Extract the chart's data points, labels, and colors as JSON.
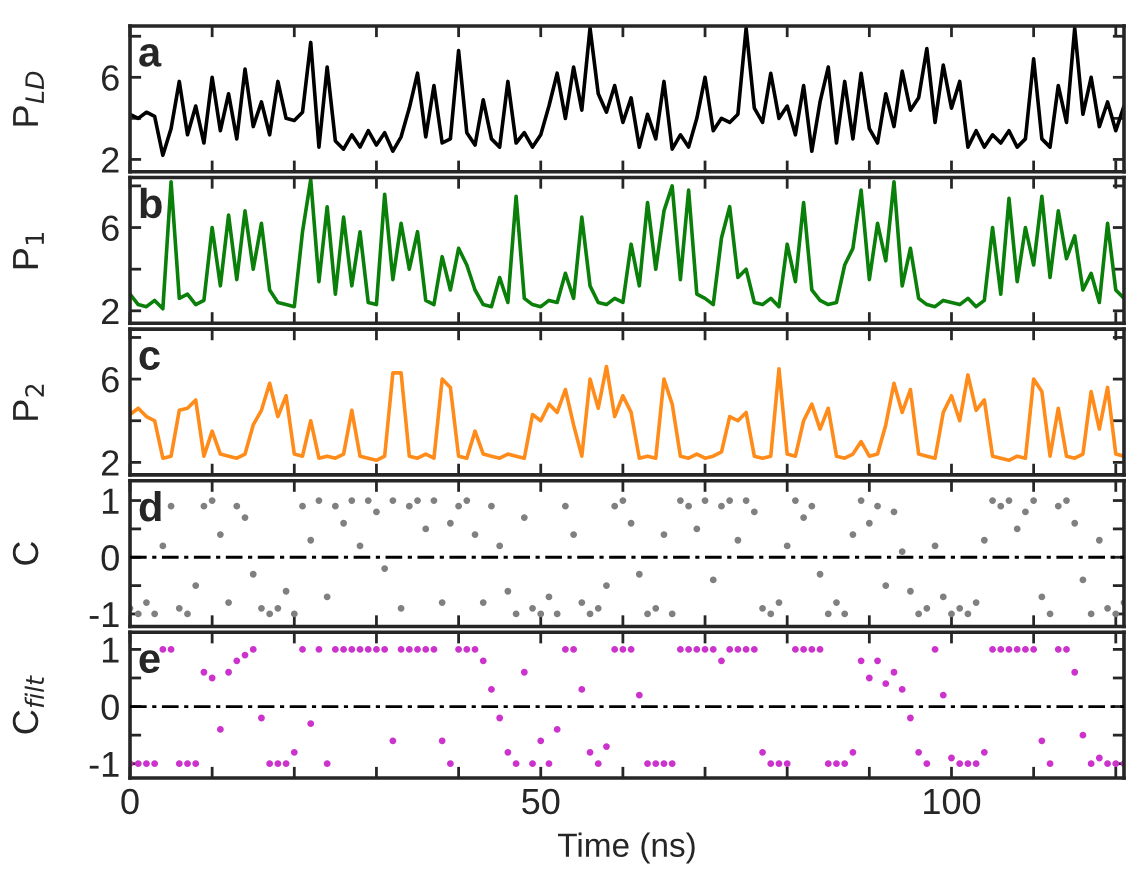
{
  "chart_data": [
    {
      "type": "line",
      "ylabel": "P$_{LD}$",
      "annotations": [
        "a"
      ],
      "tick_labels": "y",
      "xlim": [
        0,
        121
      ],
      "xticks": [
        0,
        {
          "value": 10,
          "label": null
        },
        {
          "value": 20,
          "label": null
        },
        {
          "value": 30,
          "label": null
        },
        {
          "value": 40,
          "label": null
        },
        50,
        {
          "value": 60,
          "label": null
        },
        {
          "value": 70,
          "label": null
        },
        {
          "value": 80,
          "label": null
        },
        {
          "value": 90,
          "label": null
        },
        100,
        {
          "value": 110,
          "label": null
        },
        {
          "value": 120,
          "label": null
        }
      ],
      "ylim": [
        1.4,
        8.5
      ],
      "yticks": [
        2,
        {
          "value": 4,
          "label": null
        },
        6,
        {
          "value": 8,
          "label": null
        }
      ],
      "grid": false,
      "legend": false,
      "series": [
        {
          "color": "#000000",
          "x": [
            0,
            1,
            2,
            3,
            4,
            5,
            6,
            7,
            8,
            9,
            10,
            11,
            12,
            13,
            14,
            15,
            16,
            17,
            18,
            19,
            20,
            21,
            22,
            23,
            24,
            25,
            26,
            27,
            28,
            29,
            30,
            31,
            32,
            33,
            34,
            35,
            36,
            37,
            38,
            39,
            40,
            41,
            42,
            43,
            44,
            45,
            46,
            47,
            48,
            49,
            50,
            51,
            52,
            53,
            54,
            55,
            56,
            57,
            58,
            59,
            60,
            61,
            62,
            63,
            64,
            65,
            66,
            67,
            68,
            69,
            70,
            71,
            72,
            73,
            74,
            75,
            76,
            77,
            78,
            79,
            80,
            81,
            82,
            83,
            84,
            85,
            86,
            87,
            88,
            89,
            90,
            91,
            92,
            93,
            94,
            95,
            96,
            97,
            98,
            99,
            100,
            101,
            102,
            103,
            104,
            105,
            106,
            107,
            108,
            109,
            110,
            111,
            112,
            113,
            114,
            115,
            116,
            117,
            118,
            119,
            120,
            121
          ],
          "values": [
            4.2,
            4.0,
            4.3,
            4.1,
            2.2,
            3.5,
            5.8,
            3.2,
            4.6,
            2.8,
            6.0,
            3.4,
            5.2,
            3.0,
            6.4,
            3.6,
            4.8,
            3.2,
            5.8,
            4.0,
            3.9,
            4.3,
            7.7,
            2.6,
            6.5,
            2.9,
            2.5,
            3.2,
            2.6,
            3.4,
            2.7,
            3.3,
            2.4,
            3.1,
            4.5,
            6.2,
            3.1,
            5.6,
            2.8,
            3.0,
            7.3,
            3.3,
            2.7,
            4.9,
            3.0,
            2.6,
            5.8,
            2.8,
            3.3,
            2.6,
            3.2,
            4.6,
            6.2,
            4.0,
            6.5,
            4.4,
            8.4,
            5.2,
            4.3,
            5.6,
            3.8,
            5.0,
            2.6,
            4.2,
            3.0,
            5.8,
            2.5,
            3.2,
            2.6,
            4.0,
            6.0,
            3.4,
            4.0,
            3.8,
            4.2,
            8.4,
            4.5,
            3.8,
            6.2,
            4.0,
            4.6,
            3.2,
            5.6,
            2.4,
            4.8,
            6.5,
            2.8,
            5.8,
            3.0,
            6.2,
            3.5,
            2.8,
            5.2,
            3.6,
            6.3,
            4.4,
            5.0,
            7.4,
            3.8,
            6.6,
            4.5,
            5.8,
            2.6,
            3.4,
            2.6,
            3.2,
            2.8,
            3.4,
            2.6,
            3.0,
            6.9,
            3.0,
            2.6,
            5.6,
            3.8,
            8.4,
            4.2,
            6.0,
            3.6,
            4.8,
            3.4,
            4.6
          ]
        }
      ]
    },
    {
      "type": "line",
      "ylabel": "P$_{1}$",
      "annotations": [
        "b"
      ],
      "tick_labels": "y",
      "xlim": [
        0,
        121
      ],
      "xticks": [
        0,
        {
          "value": 10,
          "label": null
        },
        {
          "value": 20,
          "label": null
        },
        {
          "value": 30,
          "label": null
        },
        {
          "value": 40,
          "label": null
        },
        50,
        {
          "value": 60,
          "label": null
        },
        {
          "value": 70,
          "label": null
        },
        {
          "value": 80,
          "label": null
        },
        {
          "value": 90,
          "label": null
        },
        100,
        {
          "value": 110,
          "label": null
        },
        {
          "value": 120,
          "label": null
        }
      ],
      "ylim": [
        1.4,
        8.4
      ],
      "yticks": [
        2,
        {
          "value": 4,
          "label": null
        },
        6,
        {
          "value": 8,
          "label": null
        }
      ],
      "grid": false,
      "legend": false,
      "series": [
        {
          "color": "#0a7f0a",
          "x": [
            0,
            1,
            2,
            3,
            4,
            5,
            6,
            7,
            8,
            9,
            10,
            11,
            12,
            13,
            14,
            15,
            16,
            17,
            18,
            19,
            20,
            21,
            22,
            23,
            24,
            25,
            26,
            27,
            28,
            29,
            30,
            31,
            32,
            33,
            34,
            35,
            36,
            37,
            38,
            39,
            40,
            41,
            42,
            43,
            44,
            45,
            46,
            47,
            48,
            49,
            50,
            51,
            52,
            53,
            54,
            55,
            56,
            57,
            58,
            59,
            60,
            61,
            62,
            63,
            64,
            65,
            66,
            67,
            68,
            69,
            70,
            71,
            72,
            73,
            74,
            75,
            76,
            77,
            78,
            79,
            80,
            81,
            82,
            83,
            84,
            85,
            86,
            87,
            88,
            89,
            90,
            91,
            92,
            93,
            94,
            95,
            96,
            97,
            98,
            99,
            100,
            101,
            102,
            103,
            104,
            105,
            106,
            107,
            108,
            109,
            110,
            111,
            112,
            113,
            114,
            115,
            116,
            117,
            118,
            119,
            120,
            121
          ],
          "values": [
            2.8,
            2.3,
            2.2,
            2.5,
            2.1,
            8.2,
            2.6,
            2.8,
            2.3,
            2.5,
            6.0,
            3.2,
            6.6,
            3.5,
            6.8,
            4.0,
            6.2,
            3.0,
            2.4,
            2.3,
            2.2,
            5.8,
            8.3,
            3.4,
            7.0,
            2.8,
            6.5,
            3.2,
            5.8,
            2.4,
            2.3,
            7.6,
            3.5,
            6.2,
            4.0,
            5.8,
            2.5,
            2.3,
            4.6,
            3.0,
            5.0,
            4.2,
            3.0,
            2.3,
            2.2,
            3.6,
            2.4,
            7.5,
            2.6,
            2.3,
            2.2,
            2.5,
            2.4,
            3.8,
            2.6,
            6.5,
            3.2,
            2.4,
            2.3,
            2.6,
            2.4,
            5.2,
            3.2,
            7.2,
            4.0,
            6.8,
            8.0,
            3.5,
            7.8,
            2.8,
            2.6,
            2.3,
            5.5,
            7.0,
            3.6,
            4.0,
            2.4,
            2.3,
            2.6,
            2.2,
            5.2,
            3.4,
            7.2,
            3.0,
            2.5,
            2.3,
            2.4,
            4.2,
            5.0,
            7.8,
            3.5,
            6.2,
            4.4,
            8.2,
            3.2,
            5.0,
            2.6,
            2.3,
            2.2,
            2.5,
            2.4,
            2.3,
            2.6,
            2.2,
            2.5,
            6.0,
            2.8,
            7.4,
            3.4,
            6.0,
            4.2,
            7.5,
            3.6,
            6.8,
            4.5,
            5.6,
            3.0,
            3.8,
            2.4,
            6.2,
            3.0,
            2.6
          ]
        }
      ]
    },
    {
      "type": "line",
      "ylabel": "P$_{2}$",
      "annotations": [
        "c"
      ],
      "tick_labels": "y",
      "xlim": [
        0,
        121
      ],
      "xticks": [
        0,
        {
          "value": 10,
          "label": null
        },
        {
          "value": 20,
          "label": null
        },
        {
          "value": 30,
          "label": null
        },
        {
          "value": 40,
          "label": null
        },
        50,
        {
          "value": 60,
          "label": null
        },
        {
          "value": 70,
          "label": null
        },
        {
          "value": 80,
          "label": null
        },
        {
          "value": 90,
          "label": null
        },
        100,
        {
          "value": 110,
          "label": null
        },
        {
          "value": 120,
          "label": null
        }
      ],
      "ylim": [
        1.4,
        8.4
      ],
      "yticks": [
        2,
        {
          "value": 4,
          "label": null
        },
        6,
        {
          "value": 8,
          "label": null
        }
      ],
      "grid": false,
      "legend": false,
      "series": [
        {
          "color": "#ff8c1a",
          "x": [
            0,
            1,
            2,
            3,
            4,
            5,
            6,
            7,
            8,
            9,
            10,
            11,
            12,
            13,
            14,
            15,
            16,
            17,
            18,
            19,
            20,
            21,
            22,
            23,
            24,
            25,
            26,
            27,
            28,
            29,
            30,
            31,
            32,
            33,
            34,
            35,
            36,
            37,
            38,
            39,
            40,
            41,
            42,
            43,
            44,
            45,
            46,
            47,
            48,
            49,
            50,
            51,
            52,
            53,
            54,
            55,
            56,
            57,
            58,
            59,
            60,
            61,
            62,
            63,
            64,
            65,
            66,
            67,
            68,
            69,
            70,
            71,
            72,
            73,
            74,
            75,
            76,
            77,
            78,
            79,
            80,
            81,
            82,
            83,
            84,
            85,
            86,
            87,
            88,
            89,
            90,
            91,
            92,
            93,
            94,
            95,
            96,
            97,
            98,
            99,
            100,
            101,
            102,
            103,
            104,
            105,
            106,
            107,
            108,
            109,
            110,
            111,
            112,
            113,
            114,
            115,
            116,
            117,
            118,
            119,
            120,
            121
          ],
          "values": [
            4.3,
            4.6,
            4.2,
            4.0,
            2.2,
            2.3,
            4.5,
            4.6,
            5.0,
            2.3,
            3.5,
            2.4,
            2.3,
            2.2,
            2.4,
            3.8,
            4.5,
            5.8,
            4.2,
            5.2,
            2.4,
            2.3,
            4.0,
            2.2,
            2.3,
            2.2,
            2.4,
            4.5,
            2.3,
            2.2,
            2.1,
            2.3,
            6.3,
            6.3,
            2.3,
            2.2,
            2.4,
            2.2,
            6.0,
            5.6,
            2.3,
            2.2,
            3.5,
            2.4,
            2.3,
            2.2,
            2.4,
            2.3,
            2.2,
            4.3,
            4.0,
            4.8,
            4.4,
            5.5,
            3.8,
            2.3,
            6.0,
            4.6,
            6.6,
            4.2,
            5.2,
            4.4,
            2.2,
            2.3,
            2.2,
            6.0,
            4.8,
            2.3,
            2.2,
            2.4,
            2.2,
            2.3,
            2.5,
            4.2,
            4.0,
            4.4,
            2.3,
            2.2,
            2.3,
            6.5,
            2.4,
            2.3,
            4.0,
            4.8,
            3.6,
            4.6,
            2.3,
            2.2,
            2.4,
            3.0,
            2.3,
            2.4,
            3.8,
            5.8,
            4.4,
            5.5,
            2.4,
            2.3,
            2.2,
            4.4,
            5.2,
            4.0,
            6.2,
            4.5,
            5.0,
            2.3,
            2.2,
            2.1,
            2.3,
            2.2,
            6.0,
            5.4,
            2.3,
            4.6,
            2.3,
            2.2,
            2.4,
            5.4,
            3.6,
            5.6,
            2.4,
            2.3
          ]
        }
      ]
    },
    {
      "type": "scatter",
      "ylabel": "C",
      "annotations": [
        "d"
      ],
      "tick_labels": "y",
      "xlim": [
        0,
        121
      ],
      "xticks": [
        0,
        {
          "value": 10,
          "label": null
        },
        {
          "value": 20,
          "label": null
        },
        {
          "value": 30,
          "label": null
        },
        {
          "value": 40,
          "label": null
        },
        50,
        {
          "value": 60,
          "label": null
        },
        {
          "value": 70,
          "label": null
        },
        {
          "value": 80,
          "label": null
        },
        {
          "value": 90,
          "label": null
        },
        100,
        {
          "value": 110,
          "label": null
        },
        {
          "value": 120,
          "label": null
        }
      ],
      "ylim": [
        -1.22,
        1.35
      ],
      "yticks": [
        -1,
        {
          "value": -0.5,
          "label": null
        },
        0,
        {
          "value": 0.5,
          "label": null
        },
        1
      ],
      "grid": false,
      "legend": false,
      "marker": "circle",
      "ref_lines": [
        {
          "axis": "y",
          "value": 0,
          "color": "#000000",
          "line_style": "dashdot"
        }
      ],
      "series": [
        {
          "color": "#808080",
          "x": [
            0,
            1,
            2,
            3,
            4,
            5,
            6,
            7,
            8,
            9,
            10,
            11,
            12,
            13,
            14,
            15,
            16,
            17,
            18,
            19,
            20,
            21,
            22,
            23,
            24,
            25,
            26,
            27,
            28,
            29,
            30,
            31,
            32,
            33,
            34,
            35,
            36,
            37,
            38,
            39,
            40,
            41,
            42,
            43,
            44,
            45,
            46,
            47,
            48,
            49,
            50,
            51,
            52,
            53,
            54,
            55,
            56,
            57,
            58,
            59,
            60,
            61,
            62,
            63,
            64,
            65,
            66,
            67,
            68,
            69,
            70,
            71,
            72,
            73,
            74,
            75,
            76,
            77,
            78,
            79,
            80,
            81,
            82,
            83,
            84,
            85,
            86,
            87,
            88,
            89,
            90,
            91,
            92,
            93,
            94,
            95,
            96,
            97,
            98,
            99,
            100,
            101,
            102,
            103,
            104,
            105,
            106,
            107,
            108,
            109,
            110,
            111,
            112,
            113,
            114,
            115,
            116,
            117,
            118,
            119,
            120,
            121
          ],
          "values": [
            -0.9,
            -1,
            -0.8,
            -1,
            0.2,
            0.9,
            -0.9,
            -1,
            -0.5,
            0.9,
            1,
            0.4,
            -0.8,
            0.9,
            0.7,
            -0.3,
            -0.9,
            -1,
            -0.9,
            -0.6,
            -1,
            0.9,
            0.3,
            1,
            -0.7,
            0.9,
            0.6,
            1,
            0.2,
            1,
            0.8,
            -0.2,
            1,
            -0.9,
            0.9,
            1,
            0.5,
            1,
            -0.8,
            0.6,
            0.9,
            1,
            0.4,
            -0.8,
            0.9,
            0.2,
            -0.6,
            -1,
            0.7,
            -0.9,
            -1,
            -0.7,
            -1,
            0.9,
            0.4,
            -0.8,
            -1,
            -0.9,
            -0.5,
            0.9,
            1,
            0.6,
            -0.3,
            -1,
            -0.9,
            0.4,
            -1,
            1,
            0.9,
            0.5,
            1,
            -0.4,
            0.9,
            1,
            0.3,
            1,
            0.8,
            -0.9,
            -1,
            -0.8,
            0.2,
            1,
            0.7,
            0.9,
            -0.3,
            -1,
            -0.8,
            -1,
            0.4,
            1,
            0.6,
            0.9,
            -0.5,
            0.8,
            0.1,
            -0.6,
            -1,
            -0.9,
            0.2,
            -0.7,
            -1,
            -0.9,
            -1,
            -0.8,
            0.3,
            1,
            0.9,
            1,
            0.5,
            0.8,
            1,
            -0.7,
            -1,
            0.9,
            1,
            0.6,
            -0.4,
            -1,
            0.3,
            -0.9,
            -1,
            -0.8
          ]
        }
      ]
    },
    {
      "type": "scatter",
      "ylabel": "C$_{filt}$",
      "xlabel": "Time (ns)",
      "annotations": [
        "e"
      ],
      "xlim": [
        0,
        121
      ],
      "xticks": [
        0,
        {
          "value": 10,
          "label": null
        },
        {
          "value": 20,
          "label": null
        },
        {
          "value": 30,
          "label": null
        },
        {
          "value": 40,
          "label": null
        },
        50,
        {
          "value": 60,
          "label": null
        },
        {
          "value": 70,
          "label": null
        },
        {
          "value": 80,
          "label": null
        },
        {
          "value": 90,
          "label": null
        },
        100,
        {
          "value": 110,
          "label": null
        },
        {
          "value": 120,
          "label": null
        }
      ],
      "ylim": [
        -1.25,
        1.3
      ],
      "yticks": [
        -1,
        {
          "value": -0.5,
          "label": null
        },
        0,
        {
          "value": 0.5,
          "label": null
        },
        1
      ],
      "grid": false,
      "legend": false,
      "marker": "circle",
      "ref_lines": [
        {
          "axis": "y",
          "value": 0,
          "color": "#000000",
          "line_style": "dashdot"
        }
      ],
      "series": [
        {
          "color": "#cc33cc",
          "x": [
            0,
            1,
            2,
            3,
            4,
            5,
            6,
            7,
            8,
            9,
            10,
            11,
            12,
            13,
            14,
            15,
            16,
            17,
            18,
            19,
            20,
            21,
            22,
            23,
            24,
            25,
            26,
            27,
            28,
            29,
            30,
            31,
            32,
            33,
            34,
            35,
            36,
            37,
            38,
            39,
            40,
            41,
            42,
            43,
            44,
            45,
            46,
            47,
            48,
            49,
            50,
            51,
            52,
            53,
            54,
            55,
            56,
            57,
            58,
            59,
            60,
            61,
            62,
            63,
            64,
            65,
            66,
            67,
            68,
            69,
            70,
            71,
            72,
            73,
            74,
            75,
            76,
            77,
            78,
            79,
            80,
            81,
            82,
            83,
            84,
            85,
            86,
            87,
            88,
            89,
            90,
            91,
            92,
            93,
            94,
            95,
            96,
            97,
            98,
            99,
            100,
            101,
            102,
            103,
            104,
            105,
            106,
            107,
            108,
            109,
            110,
            111,
            112,
            113,
            114,
            115,
            116,
            117,
            118,
            119,
            120,
            121
          ],
          "values": [
            -1,
            -1,
            -1,
            -1,
            1,
            1,
            -1,
            -1,
            -1,
            0.6,
            0.5,
            -0.4,
            0.6,
            0.8,
            0.9,
            1,
            -0.2,
            -1,
            -1,
            -1,
            -0.8,
            1,
            -0.3,
            1,
            -1,
            1,
            1,
            1,
            1,
            1,
            1,
            1,
            -0.6,
            1,
            1,
            1,
            1,
            1,
            -0.6,
            -1,
            1,
            1,
            1,
            0.8,
            0.3,
            -0.2,
            -0.8,
            -1,
            0.6,
            -1,
            -0.6,
            -1,
            -0.4,
            1,
            1,
            0.3,
            -0.8,
            -1,
            -0.7,
            1,
            1,
            1,
            0.2,
            -1,
            -1,
            -1,
            -1,
            1,
            1,
            1,
            1,
            1,
            0.8,
            1,
            1,
            1,
            1,
            -0.8,
            -1,
            -1,
            -1,
            1,
            1,
            1,
            1,
            -1,
            -1,
            -1,
            -0.8,
            0.8,
            0.5,
            0.8,
            0.4,
            0.6,
            0.3,
            -0.2,
            -0.8,
            -1,
            1,
            0.2,
            -0.9,
            -1,
            -1,
            -1,
            -0.8,
            1,
            1,
            1,
            1,
            1,
            1,
            -0.6,
            -1,
            1,
            1,
            0.6,
            -0.5,
            -1,
            -0.9,
            -1,
            -1,
            -1
          ]
        }
      ]
    }
  ]
}
